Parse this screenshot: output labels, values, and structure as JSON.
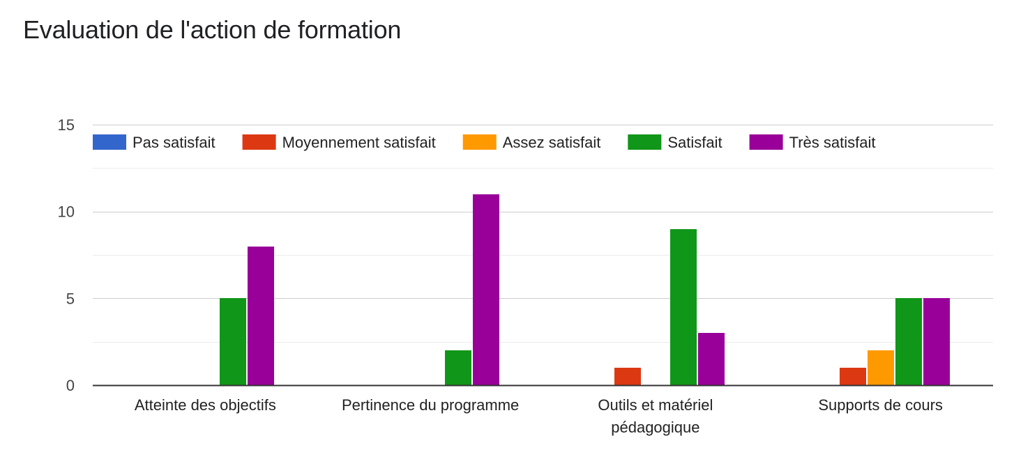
{
  "chart_data": {
    "type": "bar",
    "title": "Evaluation de l'action de formation",
    "xlabel": "",
    "ylabel": "",
    "ylim": [
      0,
      15
    ],
    "yticks": [
      0,
      5,
      10,
      15
    ],
    "grid": true,
    "legend_position": "top",
    "categories": [
      [
        "Atteinte des objectifs"
      ],
      [
        "Pertinence du programme"
      ],
      [
        "Outils et matériel",
        "pédagogique"
      ],
      [
        "Supports de cours"
      ]
    ],
    "series": [
      {
        "name": "Pas satisfait",
        "color": "#3366cc",
        "values": [
          0,
          0,
          0,
          0
        ]
      },
      {
        "name": "Moyennement satisfait",
        "color": "#dc3912",
        "values": [
          0,
          0,
          1,
          1
        ]
      },
      {
        "name": "Assez satisfait",
        "color": "#ff9900",
        "values": [
          0,
          0,
          0,
          2
        ]
      },
      {
        "name": "Satisfait",
        "color": "#109618",
        "values": [
          5,
          2,
          9,
          5
        ]
      },
      {
        "name": "Très satisfait",
        "color": "#990099",
        "values": [
          8,
          11,
          3,
          5
        ]
      }
    ]
  }
}
